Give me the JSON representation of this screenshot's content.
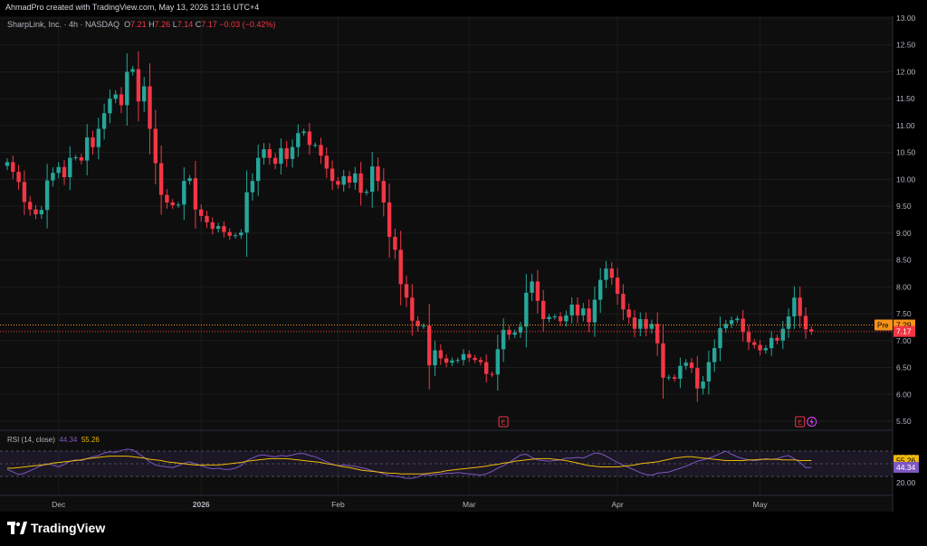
{
  "header": {
    "caption": "AhmadPro created with TradingView.com, May 13, 2026 13:16 UTC+4"
  },
  "symbol": {
    "name": "SharpLink, Inc. · 4h · NASDAQ",
    "o_label": "O",
    "o_value": "7.21",
    "h_label": "H",
    "h_value": "7.26",
    "l_label": "L",
    "l_value": "7.14",
    "c_label": "C",
    "c_value": "7.17",
    "change": "−0.03 (−0.42%)"
  },
  "rsi_legend": {
    "label": "RSI (14, close)",
    "rsi_value": "44.34",
    "ma_value": "55.26"
  },
  "footer": {
    "brand": "TradingView"
  },
  "colors": {
    "up": "#26a69a",
    "down": "#f23645",
    "rsi": "#7e57c2",
    "rsi_ma": "#f0b90b",
    "pre_badge": "#f7931a"
  },
  "chart_data": {
    "type": "candlestick",
    "price_axis": {
      "ticks": [
        "13.00",
        "12.50",
        "12.00",
        "11.50",
        "11.00",
        "10.50",
        "10.00",
        "9.50",
        "9.00",
        "8.50",
        "8.00",
        "7.50",
        "7.00",
        "6.50",
        "6.00",
        "5.50"
      ],
      "range": [
        5.3,
        13.1
      ]
    },
    "time_axis": {
      "labels": [
        {
          "text": "Dec",
          "bar": 9
        },
        {
          "text": "2026",
          "bar": 34
        },
        {
          "text": "Feb",
          "bar": 58
        },
        {
          "text": "Mar",
          "bar": 81
        },
        {
          "text": "Apr",
          "bar": 107
        },
        {
          "text": "May",
          "bar": 132
        }
      ],
      "bar_count": 142
    },
    "price_markers": {
      "pre_label": "Pre",
      "pre_value": "7.29",
      "last_value": "7.17"
    },
    "earnings_markers": [
      {
        "label": "E",
        "bar": 87
      },
      {
        "label": "E",
        "bar": 139
      }
    ],
    "candles_open": [
      10.25,
      10.32,
      10.14,
      9.95,
      9.58,
      9.44,
      9.35,
      9.43,
      9.98,
      10.12,
      10.23,
      10.04,
      10.4,
      10.41,
      10.35,
      10.78,
      10.6,
      10.94,
      11.23,
      11.5,
      11.58,
      11.38,
      12.0,
      12.05,
      11.45,
      11.73,
      10.94,
      10.3,
      9.71,
      9.57,
      9.52,
      9.53,
      9.97,
      10.02,
      9.44,
      9.32,
      9.2,
      9.08,
      9.13,
      9.02,
      8.95,
      8.96,
      9.01,
      9.76,
      9.97,
      10.4,
      10.56,
      10.4,
      10.29,
      10.58,
      10.38,
      10.6,
      10.86,
      10.89,
      10.64,
      10.64,
      10.44,
      10.2,
      9.97,
      9.9,
      10.06,
      9.94,
      10.11,
      9.75,
      9.77,
      10.24,
      9.97,
      9.57,
      8.93,
      8.69,
      8.05,
      7.8,
      7.37,
      7.27,
      7.28,
      6.54,
      6.82,
      6.67,
      6.59,
      6.63,
      6.64,
      6.75,
      6.68,
      6.64,
      6.6,
      6.38,
      6.37,
      6.84,
      7.2,
      7.11,
      7.15,
      7.26,
      7.89,
      8.1,
      7.74,
      7.4,
      7.44,
      7.45,
      7.36,
      7.47,
      7.67,
      7.47,
      7.6,
      7.34,
      7.76,
      8.13,
      8.34,
      8.17,
      7.87,
      7.58,
      7.43,
      7.22,
      7.4,
      7.22,
      7.31,
      6.95,
      6.31,
      6.32,
      6.29,
      6.53,
      6.59,
      6.49,
      6.11,
      6.24,
      6.6,
      6.86,
      7.23,
      7.31,
      7.38,
      7.41,
      7.16,
      6.97,
      6.92,
      6.82,
      6.86,
      7.05,
      7.0,
      7.22,
      7.45,
      7.8,
      7.46,
      7.21
    ],
    "candles_close": [
      10.32,
      10.14,
      9.95,
      9.58,
      9.44,
      9.35,
      9.43,
      9.98,
      10.12,
      10.23,
      10.04,
      10.4,
      10.41,
      10.35,
      10.78,
      10.6,
      10.94,
      11.23,
      11.5,
      11.58,
      11.38,
      12.0,
      12.05,
      11.45,
      11.73,
      10.94,
      10.3,
      9.71,
      9.57,
      9.52,
      9.53,
      9.97,
      10.02,
      9.44,
      9.32,
      9.2,
      9.08,
      9.13,
      9.02,
      8.95,
      8.96,
      9.01,
      9.76,
      9.97,
      10.4,
      10.56,
      10.4,
      10.29,
      10.58,
      10.38,
      10.6,
      10.86,
      10.89,
      10.64,
      10.64,
      10.44,
      10.2,
      9.97,
      9.9,
      10.06,
      9.94,
      10.11,
      9.75,
      9.77,
      10.24,
      9.97,
      9.57,
      8.93,
      8.69,
      8.05,
      7.8,
      7.37,
      7.27,
      7.28,
      6.54,
      6.82,
      6.67,
      6.59,
      6.63,
      6.64,
      6.75,
      6.68,
      6.64,
      6.6,
      6.38,
      6.37,
      6.84,
      7.2,
      7.11,
      7.15,
      7.26,
      7.89,
      8.1,
      7.74,
      7.4,
      7.44,
      7.45,
      7.36,
      7.47,
      7.67,
      7.47,
      7.6,
      7.34,
      7.76,
      8.13,
      8.34,
      8.17,
      7.87,
      7.58,
      7.43,
      7.22,
      7.4,
      7.22,
      7.31,
      6.95,
      6.31,
      6.32,
      6.29,
      6.53,
      6.59,
      6.49,
      6.11,
      6.24,
      6.6,
      6.86,
      7.23,
      7.31,
      7.38,
      7.41,
      7.16,
      6.97,
      6.92,
      6.82,
      6.86,
      7.05,
      7.0,
      7.22,
      7.45,
      7.8,
      7.46,
      7.21,
      7.17
    ],
    "rsi": {
      "name": "RSI (14, close)",
      "scale": [
        0,
        100
      ],
      "bands": [
        30,
        70
      ],
      "ticks": [
        "60.00",
        "20.00"
      ],
      "last_rsi": "44.34",
      "last_ma": "55.26",
      "values": [
        41,
        37,
        33,
        35,
        39,
        43,
        47,
        50,
        48,
        45,
        49,
        54,
        56,
        55,
        58,
        61,
        63,
        67,
        69,
        68,
        71,
        73,
        72,
        66,
        60,
        53,
        48,
        46,
        45,
        44,
        47,
        51,
        53,
        50,
        47,
        44,
        42,
        43,
        41,
        41,
        43,
        47,
        55,
        59,
        63,
        64,
        62,
        61,
        63,
        62,
        64,
        66,
        66,
        63,
        61,
        57,
        53,
        49,
        47,
        48,
        47,
        46,
        44,
        42,
        39,
        37,
        34,
        31,
        30,
        29,
        27,
        27,
        29,
        33,
        32,
        33,
        34,
        35,
        35,
        36,
        35,
        34,
        33,
        32,
        34,
        38,
        43,
        47,
        52,
        58,
        64,
        65,
        60,
        56,
        55,
        54,
        55,
        56,
        59,
        59,
        60,
        59,
        63,
        67,
        66,
        62,
        57,
        52,
        48,
        44,
        40,
        36,
        33,
        32,
        35,
        36,
        37,
        40,
        43,
        46,
        50,
        54,
        56,
        59,
        62,
        66,
        70,
        65,
        61,
        58,
        56,
        55,
        56,
        58,
        57,
        58,
        61,
        63,
        58,
        52,
        44,
        44
      ],
      "ma_values": [
        43,
        43,
        44,
        45,
        46,
        47,
        48,
        49,
        51,
        52,
        53,
        54,
        55,
        56,
        58,
        59,
        60,
        61,
        62,
        62,
        62,
        62,
        61,
        60,
        59,
        57,
        56,
        55,
        53,
        52,
        51,
        50,
        49,
        48,
        48,
        48,
        48,
        48,
        49,
        50,
        51,
        52,
        54,
        55,
        56,
        57,
        58,
        58,
        58,
        58,
        57,
        56,
        55,
        54,
        53,
        52,
        50,
        49,
        47,
        45,
        44,
        42,
        40,
        39,
        38,
        37,
        36,
        35,
        35,
        34,
        34,
        34,
        34,
        34,
        35,
        36,
        37,
        39,
        40,
        41,
        42,
        43,
        44,
        45,
        46,
        48,
        49,
        51,
        52,
        54,
        55,
        56,
        57,
        58,
        58,
        58,
        57,
        56,
        55,
        53,
        51,
        49,
        47,
        46,
        45,
        45,
        45,
        45,
        46,
        47,
        48,
        50,
        51,
        52,
        53,
        55,
        57,
        59,
        60,
        61,
        61,
        60,
        59,
        58,
        57,
        56,
        55,
        55,
        55,
        55,
        56,
        56,
        57,
        57,
        57,
        57,
        56,
        56,
        56,
        55,
        55,
        55
      ]
    }
  }
}
